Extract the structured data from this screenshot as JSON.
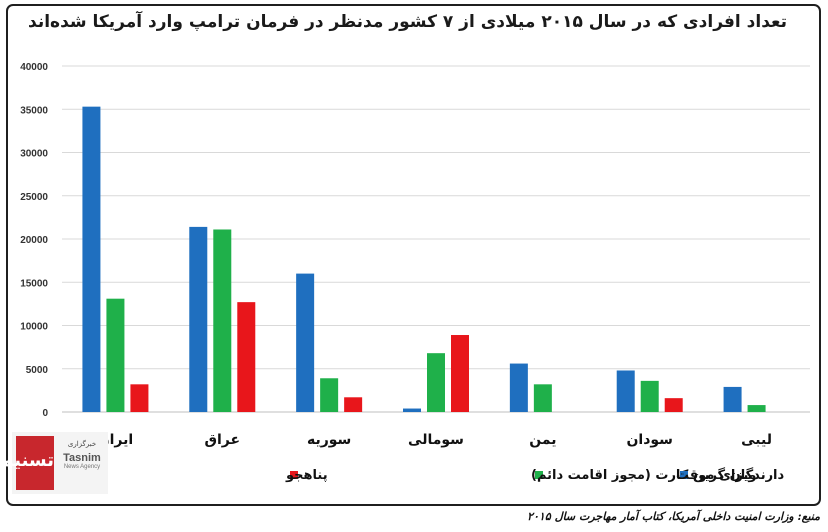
{
  "chart_data": {
    "type": "bar",
    "title": "تعداد افرادی که در سال ۲۰۱۵ میلادی از ۷ کشور مدنظر در فرمان ترامپ  وارد آمریکا شده‌اند",
    "categories": [
      "ایران",
      "عراق",
      "سوریه",
      "سومالی",
      "یمن",
      "سودان",
      "لیبی"
    ],
    "series": [
      {
        "name": "ویزای موقت",
        "color": "#1f6fbf",
        "values": [
          35300,
          21400,
          16000,
          400,
          5600,
          4800,
          2900
        ]
      },
      {
        "name": "دارندگان گرین کارت (مجوز اقامت دائم)",
        "color": "#1fb04a",
        "values": [
          13100,
          21100,
          3900,
          6800,
          3200,
          3600,
          800
        ]
      },
      {
        "name": "پناهجو",
        "color": "#e8161b",
        "values": [
          3200,
          12700,
          1700,
          8900,
          0,
          1600,
          0
        ]
      }
    ],
    "ylim": [
      0,
      40000
    ],
    "yticks": [
      "0",
      "5000",
      "10000",
      "15000",
      "20000",
      "25000",
      "30000",
      "35000",
      "40000"
    ],
    "grid": true,
    "legend": "bottom"
  },
  "logo": {
    "mark": "تسنیم",
    "fa": "خبرگزاری",
    "en": "Tasnim",
    "sub": "News Agency"
  },
  "source": "منبع: وزارت امنیت داخلی آمریکا، کتاب آمار مهاجرت سال ۲۰۱۵"
}
